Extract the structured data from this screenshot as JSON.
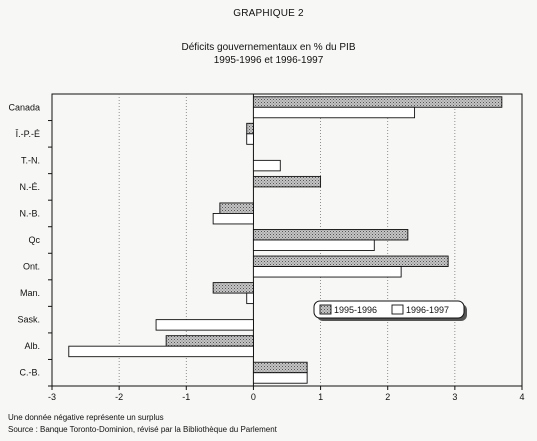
{
  "header": {
    "doc_label": "GRAPHIQUE 2",
    "title_line1": "Déficits gouvernementaux en % du PIB",
    "title_line2": "1995-1996 et 1996-1997"
  },
  "notes": {
    "line1": "Une donnée négative représente un surplus",
    "line2": "Source : Banque Toronto-Dominion, révisé par la Bibliothèque du Parlement"
  },
  "chart_data": {
    "type": "bar",
    "orientation": "horizontal",
    "title": "Déficits gouvernementaux en % du PIB",
    "subtitle": "1995-1996 et 1996-1997",
    "categories": [
      "Canada",
      "Î.-P.-É",
      "T.-N.",
      "N.-É.",
      "N.-B.",
      "Qc",
      "Ont.",
      "Man.",
      "Sask.",
      "Alb.",
      "C.-B."
    ],
    "series": [
      {
        "name": "1995-1996",
        "values": [
          3.7,
          -0.1,
          null,
          1.0,
          -0.5,
          2.3,
          2.9,
          -0.6,
          null,
          -1.3,
          0.8
        ],
        "color": "#b5b5b5",
        "pattern": "stippled"
      },
      {
        "name": "1996-1997",
        "values": [
          2.4,
          -0.1,
          0.4,
          null,
          -0.6,
          1.8,
          2.2,
          -0.1,
          -1.45,
          -2.75,
          0.8
        ],
        "color": "#ffffff",
        "pattern": "open"
      }
    ],
    "xlim": [
      -3,
      4
    ],
    "xticks": [
      -3,
      -2,
      -1,
      0,
      1,
      2,
      3,
      4
    ],
    "grid": "vertical dotted",
    "legend": "center-right",
    "xlabel": "",
    "ylabel": ""
  }
}
